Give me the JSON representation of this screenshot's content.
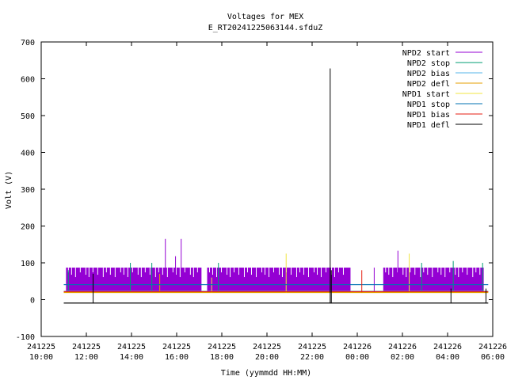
{
  "chart_data": {
    "type": "line",
    "title": "Voltages for MEX",
    "subtitle": "E_RT20241225063144.sfduZ",
    "xlabel": "Time (yymmdd HH:MM)",
    "ylabel": "Volt (V)",
    "xlim": [
      "2024-12-25 10:00",
      "2024-12-26 06:00"
    ],
    "ylim": [
      -100,
      700
    ],
    "grid": false,
    "legend_position": "top-right",
    "yticks": [
      -100,
      0,
      100,
      200,
      300,
      400,
      500,
      600,
      700
    ],
    "xticks": [
      {
        "t": "2024-12-25 10:00",
        "date": "241225",
        "time": "10:00"
      },
      {
        "t": "2024-12-25 12:00",
        "date": "241225",
        "time": "12:00"
      },
      {
        "t": "2024-12-25 14:00",
        "date": "241225",
        "time": "14:00"
      },
      {
        "t": "2024-12-25 16:00",
        "date": "241225",
        "time": "16:00"
      },
      {
        "t": "2024-12-25 18:00",
        "date": "241225",
        "time": "18:00"
      },
      {
        "t": "2024-12-25 20:00",
        "date": "241225",
        "time": "20:00"
      },
      {
        "t": "2024-12-25 22:00",
        "date": "241225",
        "time": "22:00"
      },
      {
        "t": "2024-12-26 00:00",
        "date": "241226",
        "time": "00:00"
      },
      {
        "t": "2024-12-26 02:00",
        "date": "241226",
        "time": "02:00"
      },
      {
        "t": "2024-12-26 04:00",
        "date": "241226",
        "time": "04:00"
      },
      {
        "t": "2024-12-26 06:00",
        "date": "241226",
        "time": "06:00"
      }
    ],
    "series": [
      {
        "name": "NPD2 start",
        "color": "#9400d3",
        "segments": [
          {
            "from": "2024-12-25 11:06",
            "to": "2024-12-25 17:06",
            "low": 22,
            "high": 87
          },
          {
            "from": "2024-12-25 17:21",
            "to": "2024-12-25 23:42",
            "low": 22,
            "high": 87
          },
          {
            "from": "2024-12-26 01:09",
            "to": "2024-12-26 05:36",
            "low": 22,
            "high": 87
          }
        ],
        "spikes": [
          {
            "t": "2024-12-25 15:30",
            "v": 165
          },
          {
            "t": "2024-12-25 16:12",
            "v": 165
          },
          {
            "t": "2024-12-25 15:57",
            "v": 118
          },
          {
            "t": "2024-12-26 01:48",
            "v": 133
          },
          {
            "t": "2024-12-26 00:45",
            "v": 87
          }
        ]
      },
      {
        "name": "NPD2 stop",
        "color": "#009e73",
        "segments": [
          {
            "from": "2024-12-25 11:00",
            "to": "2024-12-26 05:48",
            "low": 20,
            "high": 22
          }
        ],
        "spikes": [
          {
            "t": "2024-12-25 11:12",
            "v": 80
          },
          {
            "t": "2024-12-25 13:57",
            "v": 100
          },
          {
            "t": "2024-12-25 14:54",
            "v": 100
          },
          {
            "t": "2024-12-25 17:51",
            "v": 100
          },
          {
            "t": "2024-12-26 02:51",
            "v": 100
          },
          {
            "t": "2024-12-26 04:15",
            "v": 105
          },
          {
            "t": "2024-12-26 05:33",
            "v": 100
          }
        ]
      },
      {
        "name": "NPD2 bias",
        "color": "#56b4e9",
        "segments": [
          {
            "from": "2024-12-25 11:00",
            "to": "2024-12-26 05:48",
            "low": 22,
            "high": 24
          }
        ],
        "spikes": []
      },
      {
        "name": "NPD2 defl",
        "color": "#e69f00",
        "segments": [
          {
            "from": "2024-12-25 11:00",
            "to": "2024-12-26 05:48",
            "low": 18,
            "high": 21
          }
        ],
        "spikes": [
          {
            "t": "2024-12-25 15:15",
            "v": 70
          }
        ]
      },
      {
        "name": "NPD1 start",
        "color": "#f0e442",
        "segments": [],
        "spikes": [
          {
            "t": "2024-12-25 20:51",
            "v": 125
          },
          {
            "t": "2024-12-26 02:18",
            "v": 125
          },
          {
            "t": "2024-12-25 17:33",
            "v": 60
          }
        ]
      },
      {
        "name": "NPD1 stop",
        "color": "#0072b2",
        "segments": [
          {
            "from": "2024-12-25 11:00",
            "to": "2024-12-26 05:48",
            "low": 40,
            "high": 42
          }
        ],
        "spikes": []
      },
      {
        "name": "NPD1 bias",
        "color": "#e51e10",
        "segments": [
          {
            "from": "2024-12-25 11:00",
            "to": "2024-12-26 05:48",
            "low": 21,
            "high": 23
          }
        ],
        "spikes": [
          {
            "t": "2024-12-26 00:12",
            "v": 80
          }
        ]
      },
      {
        "name": "NPD1 defl",
        "color": "#000000",
        "segments": [
          {
            "from": "2024-12-25 11:00",
            "to": "2024-12-26 05:48",
            "low": -10,
            "high": -8
          }
        ],
        "spikes": [
          {
            "t": "2024-12-25 12:18",
            "v": 70,
            "low": -10
          },
          {
            "t": "2024-12-25 22:48",
            "v": 628,
            "low": -10
          },
          {
            "t": "2024-12-25 22:51",
            "v": 80,
            "low": -10
          },
          {
            "t": "2024-12-26 04:09",
            "v": 30,
            "low": -10
          },
          {
            "t": "2024-12-26 05:42",
            "v": 30,
            "low": -10
          }
        ]
      }
    ]
  }
}
